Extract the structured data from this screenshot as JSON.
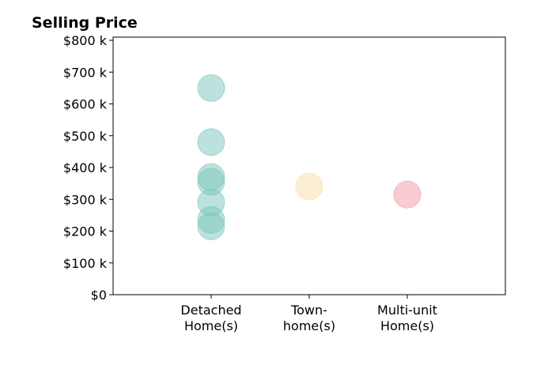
{
  "chart_data": {
    "type": "scatter",
    "title": "Selling Price",
    "categories": [
      {
        "line1": "Detached",
        "line2": "Home(s)"
      },
      {
        "line1": "Town-",
        "line2": "home(s)"
      },
      {
        "line1": "Multi-unit",
        "line2": "Home(s)"
      }
    ],
    "y_ticks": [
      "$0",
      "$100 k",
      "$200 k",
      "$300 k",
      "$400 k",
      "$500 k",
      "$600 k",
      "$700 k",
      "$800 k"
    ],
    "ylim": [
      0,
      810
    ],
    "grid": false,
    "series": [
      {
        "category_index": 0,
        "color": "#7cc6bb",
        "values": [
          650,
          480,
          370,
          355,
          290,
          235,
          215
        ]
      },
      {
        "category_index": 1,
        "color": "#f7e0a8",
        "values": [
          340
        ]
      },
      {
        "category_index": 2,
        "color": "#f29aa6",
        "values": [
          315
        ]
      }
    ]
  }
}
